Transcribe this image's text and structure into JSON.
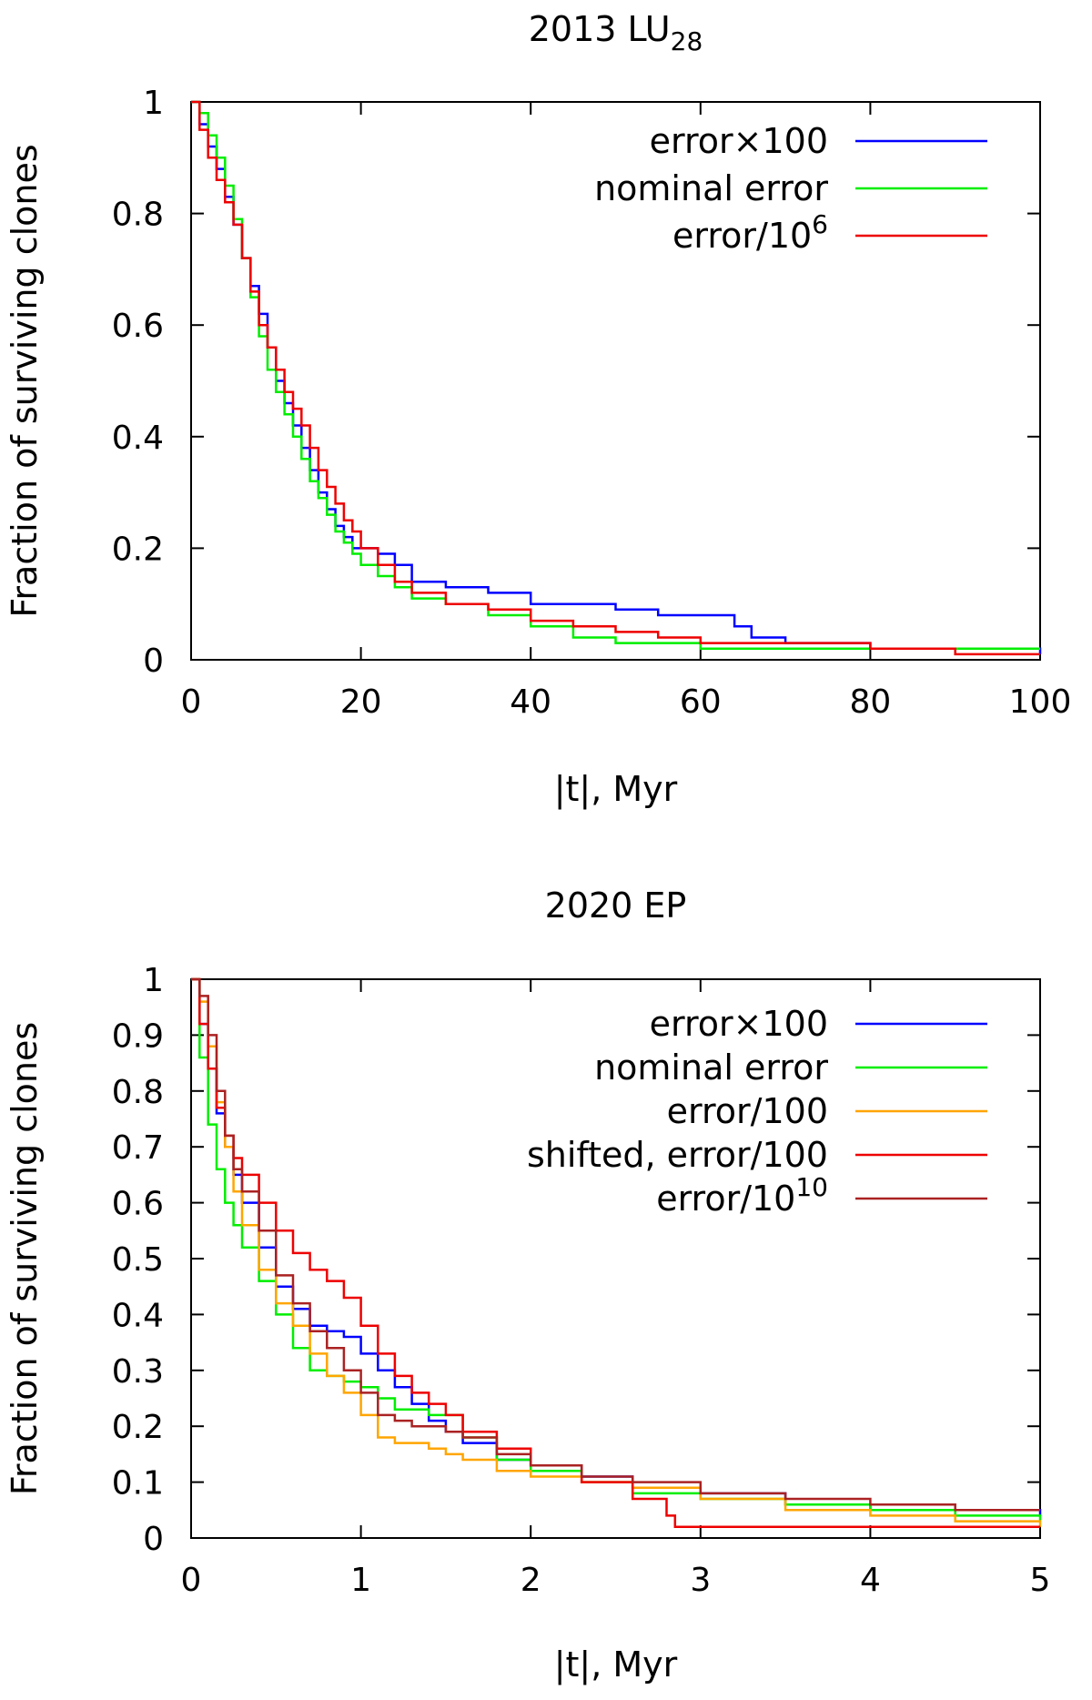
{
  "chart_data": [
    {
      "type": "line",
      "title": "2013 LU",
      "title_subscript": "28",
      "xlabel": "|t|, Myr",
      "ylabel": "Fraction of surviving clones",
      "xlim": [
        0,
        100
      ],
      "ylim": [
        0,
        1
      ],
      "xticks": [
        "0",
        "20",
        "40",
        "60",
        "80",
        "100"
      ],
      "yticks": [
        "0",
        "0.2",
        "0.4",
        "0.6",
        "0.8",
        "1"
      ],
      "legend_position": "top-right",
      "grid": false,
      "series": [
        {
          "name": "error×100",
          "label_main": "error×100",
          "label_sup": "",
          "color": "#0000ff",
          "x": [
            0,
            1,
            2,
            3,
            4,
            5,
            6,
            7,
            8,
            9,
            10,
            11,
            12,
            13,
            14,
            15,
            16,
            17,
            18,
            19,
            20,
            22,
            24,
            26,
            30,
            35,
            40,
            45,
            50,
            55,
            60,
            64,
            66,
            70,
            80,
            100
          ],
          "y": [
            1,
            0.96,
            0.92,
            0.88,
            0.83,
            0.78,
            0.72,
            0.67,
            0.62,
            0.56,
            0.5,
            0.46,
            0.42,
            0.38,
            0.34,
            0.3,
            0.27,
            0.24,
            0.22,
            0.2,
            0.2,
            0.19,
            0.17,
            0.14,
            0.13,
            0.12,
            0.1,
            0.1,
            0.09,
            0.08,
            0.08,
            0.06,
            0.04,
            0.03,
            0.02,
            0.01
          ]
        },
        {
          "name": "nominal error",
          "label_main": "nominal error",
          "label_sup": "",
          "color": "#00ee00",
          "x": [
            0,
            1,
            2,
            3,
            4,
            5,
            6,
            7,
            8,
            9,
            10,
            11,
            12,
            13,
            14,
            15,
            16,
            17,
            18,
            19,
            20,
            22,
            24,
            26,
            30,
            35,
            40,
            45,
            50,
            55,
            60,
            70,
            80,
            90,
            100
          ],
          "y": [
            1,
            0.98,
            0.94,
            0.9,
            0.85,
            0.79,
            0.72,
            0.65,
            0.58,
            0.52,
            0.48,
            0.44,
            0.4,
            0.36,
            0.32,
            0.29,
            0.26,
            0.23,
            0.21,
            0.19,
            0.17,
            0.15,
            0.13,
            0.11,
            0.1,
            0.08,
            0.06,
            0.04,
            0.03,
            0.03,
            0.02,
            0.02,
            0.02,
            0.02,
            0.02
          ]
        },
        {
          "name": "error/10^6",
          "label_main": "error/10",
          "label_sup": "6",
          "color": "#ee0000",
          "x": [
            0,
            1,
            2,
            3,
            4,
            5,
            6,
            7,
            8,
            9,
            10,
            11,
            12,
            13,
            14,
            15,
            16,
            17,
            18,
            19,
            20,
            22,
            24,
            26,
            30,
            35,
            40,
            45,
            50,
            55,
            60,
            70,
            80,
            90,
            100
          ],
          "y": [
            1,
            0.95,
            0.9,
            0.86,
            0.82,
            0.78,
            0.72,
            0.66,
            0.6,
            0.56,
            0.52,
            0.48,
            0.45,
            0.42,
            0.38,
            0.34,
            0.31,
            0.28,
            0.25,
            0.23,
            0.2,
            0.17,
            0.14,
            0.12,
            0.1,
            0.09,
            0.07,
            0.06,
            0.05,
            0.04,
            0.03,
            0.03,
            0.02,
            0.01,
            0.01
          ]
        }
      ]
    },
    {
      "type": "line",
      "title": "2020 EP",
      "title_subscript": "",
      "xlabel": "|t|, Myr",
      "ylabel": "Fraction of surviving clones",
      "xlim": [
        0,
        5
      ],
      "ylim": [
        0,
        1
      ],
      "xticks": [
        "0",
        "1",
        "2",
        "3",
        "4",
        "5"
      ],
      "yticks": [
        "0",
        "0.1",
        "0.2",
        "0.3",
        "0.4",
        "0.5",
        "0.6",
        "0.7",
        "0.8",
        "0.9",
        "1"
      ],
      "legend_position": "top-right",
      "grid": false,
      "series": [
        {
          "name": "error×100",
          "label_main": "error×100",
          "label_sup": "",
          "color": "#0000ff",
          "x": [
            0,
            0.05,
            0.1,
            0.15,
            0.2,
            0.25,
            0.3,
            0.4,
            0.5,
            0.6,
            0.7,
            0.8,
            0.9,
            1.0,
            1.1,
            1.2,
            1.3,
            1.4,
            1.5,
            1.6,
            1.8,
            2.0,
            2.3,
            2.6,
            3.0,
            3.5,
            4.0,
            4.5,
            5.0
          ],
          "y": [
            1,
            0.92,
            0.84,
            0.76,
            0.7,
            0.65,
            0.6,
            0.52,
            0.45,
            0.41,
            0.38,
            0.37,
            0.36,
            0.33,
            0.3,
            0.27,
            0.24,
            0.21,
            0.19,
            0.17,
            0.14,
            0.13,
            0.11,
            0.09,
            0.08,
            0.06,
            0.05,
            0.05,
            0.04
          ]
        },
        {
          "name": "nominal error",
          "label_main": "nominal error",
          "label_sup": "",
          "color": "#00ee00",
          "x": [
            0,
            0.05,
            0.1,
            0.15,
            0.2,
            0.25,
            0.3,
            0.4,
            0.5,
            0.6,
            0.7,
            0.8,
            0.9,
            1.0,
            1.1,
            1.2,
            1.3,
            1.4,
            1.5,
            1.6,
            1.8,
            2.0,
            2.3,
            2.6,
            3.0,
            3.5,
            4.0,
            4.5,
            5.0
          ],
          "y": [
            1,
            0.86,
            0.74,
            0.66,
            0.6,
            0.56,
            0.52,
            0.46,
            0.4,
            0.34,
            0.3,
            0.29,
            0.28,
            0.27,
            0.25,
            0.23,
            0.23,
            0.22,
            0.22,
            0.18,
            0.14,
            0.12,
            0.1,
            0.08,
            0.07,
            0.06,
            0.05,
            0.04,
            0.03
          ]
        },
        {
          "name": "error/100",
          "label_main": "error/100",
          "label_sup": "",
          "color": "#ffa500",
          "x": [
            0,
            0.05,
            0.1,
            0.15,
            0.2,
            0.25,
            0.3,
            0.4,
            0.5,
            0.6,
            0.7,
            0.8,
            0.9,
            1.0,
            1.1,
            1.2,
            1.3,
            1.4,
            1.5,
            1.6,
            1.8,
            2.0,
            2.3,
            2.6,
            3.0,
            3.5,
            4.0,
            4.5,
            5.0
          ],
          "y": [
            1,
            0.96,
            0.88,
            0.78,
            0.7,
            0.62,
            0.56,
            0.48,
            0.42,
            0.38,
            0.33,
            0.29,
            0.26,
            0.22,
            0.18,
            0.17,
            0.17,
            0.16,
            0.15,
            0.14,
            0.12,
            0.11,
            0.1,
            0.09,
            0.07,
            0.05,
            0.04,
            0.03,
            0.02
          ]
        },
        {
          "name": "shifted, error/100",
          "label_main": "shifted, error/100",
          "label_sup": "",
          "color": "#ee0000",
          "x": [
            0,
            0.05,
            0.1,
            0.15,
            0.2,
            0.25,
            0.3,
            0.4,
            0.5,
            0.6,
            0.7,
            0.8,
            0.9,
            1.0,
            1.1,
            1.2,
            1.3,
            1.4,
            1.5,
            1.6,
            1.8,
            2.0,
            2.3,
            2.6,
            2.8,
            2.85,
            3.0,
            3.5,
            4.0,
            4.5,
            5.0
          ],
          "y": [
            1,
            0.92,
            0.84,
            0.77,
            0.72,
            0.68,
            0.65,
            0.6,
            0.55,
            0.51,
            0.48,
            0.46,
            0.43,
            0.38,
            0.33,
            0.29,
            0.26,
            0.24,
            0.22,
            0.19,
            0.16,
            0.13,
            0.1,
            0.07,
            0.04,
            0.02,
            0.02,
            0.02,
            0.02,
            0.02,
            0.02
          ]
        },
        {
          "name": "error/10^10",
          "label_main": "error/10",
          "label_sup": "10",
          "color": "#aa2222",
          "x": [
            0,
            0.05,
            0.1,
            0.15,
            0.2,
            0.25,
            0.3,
            0.4,
            0.5,
            0.6,
            0.7,
            0.8,
            0.9,
            1.0,
            1.1,
            1.2,
            1.3,
            1.4,
            1.5,
            1.6,
            1.8,
            2.0,
            2.3,
            2.6,
            3.0,
            3.5,
            4.0,
            4.5,
            5.0
          ],
          "y": [
            1,
            0.97,
            0.9,
            0.8,
            0.72,
            0.66,
            0.62,
            0.55,
            0.47,
            0.42,
            0.37,
            0.34,
            0.3,
            0.26,
            0.22,
            0.21,
            0.2,
            0.2,
            0.19,
            0.18,
            0.15,
            0.13,
            0.11,
            0.1,
            0.08,
            0.07,
            0.06,
            0.05,
            0.05
          ]
        }
      ]
    }
  ]
}
